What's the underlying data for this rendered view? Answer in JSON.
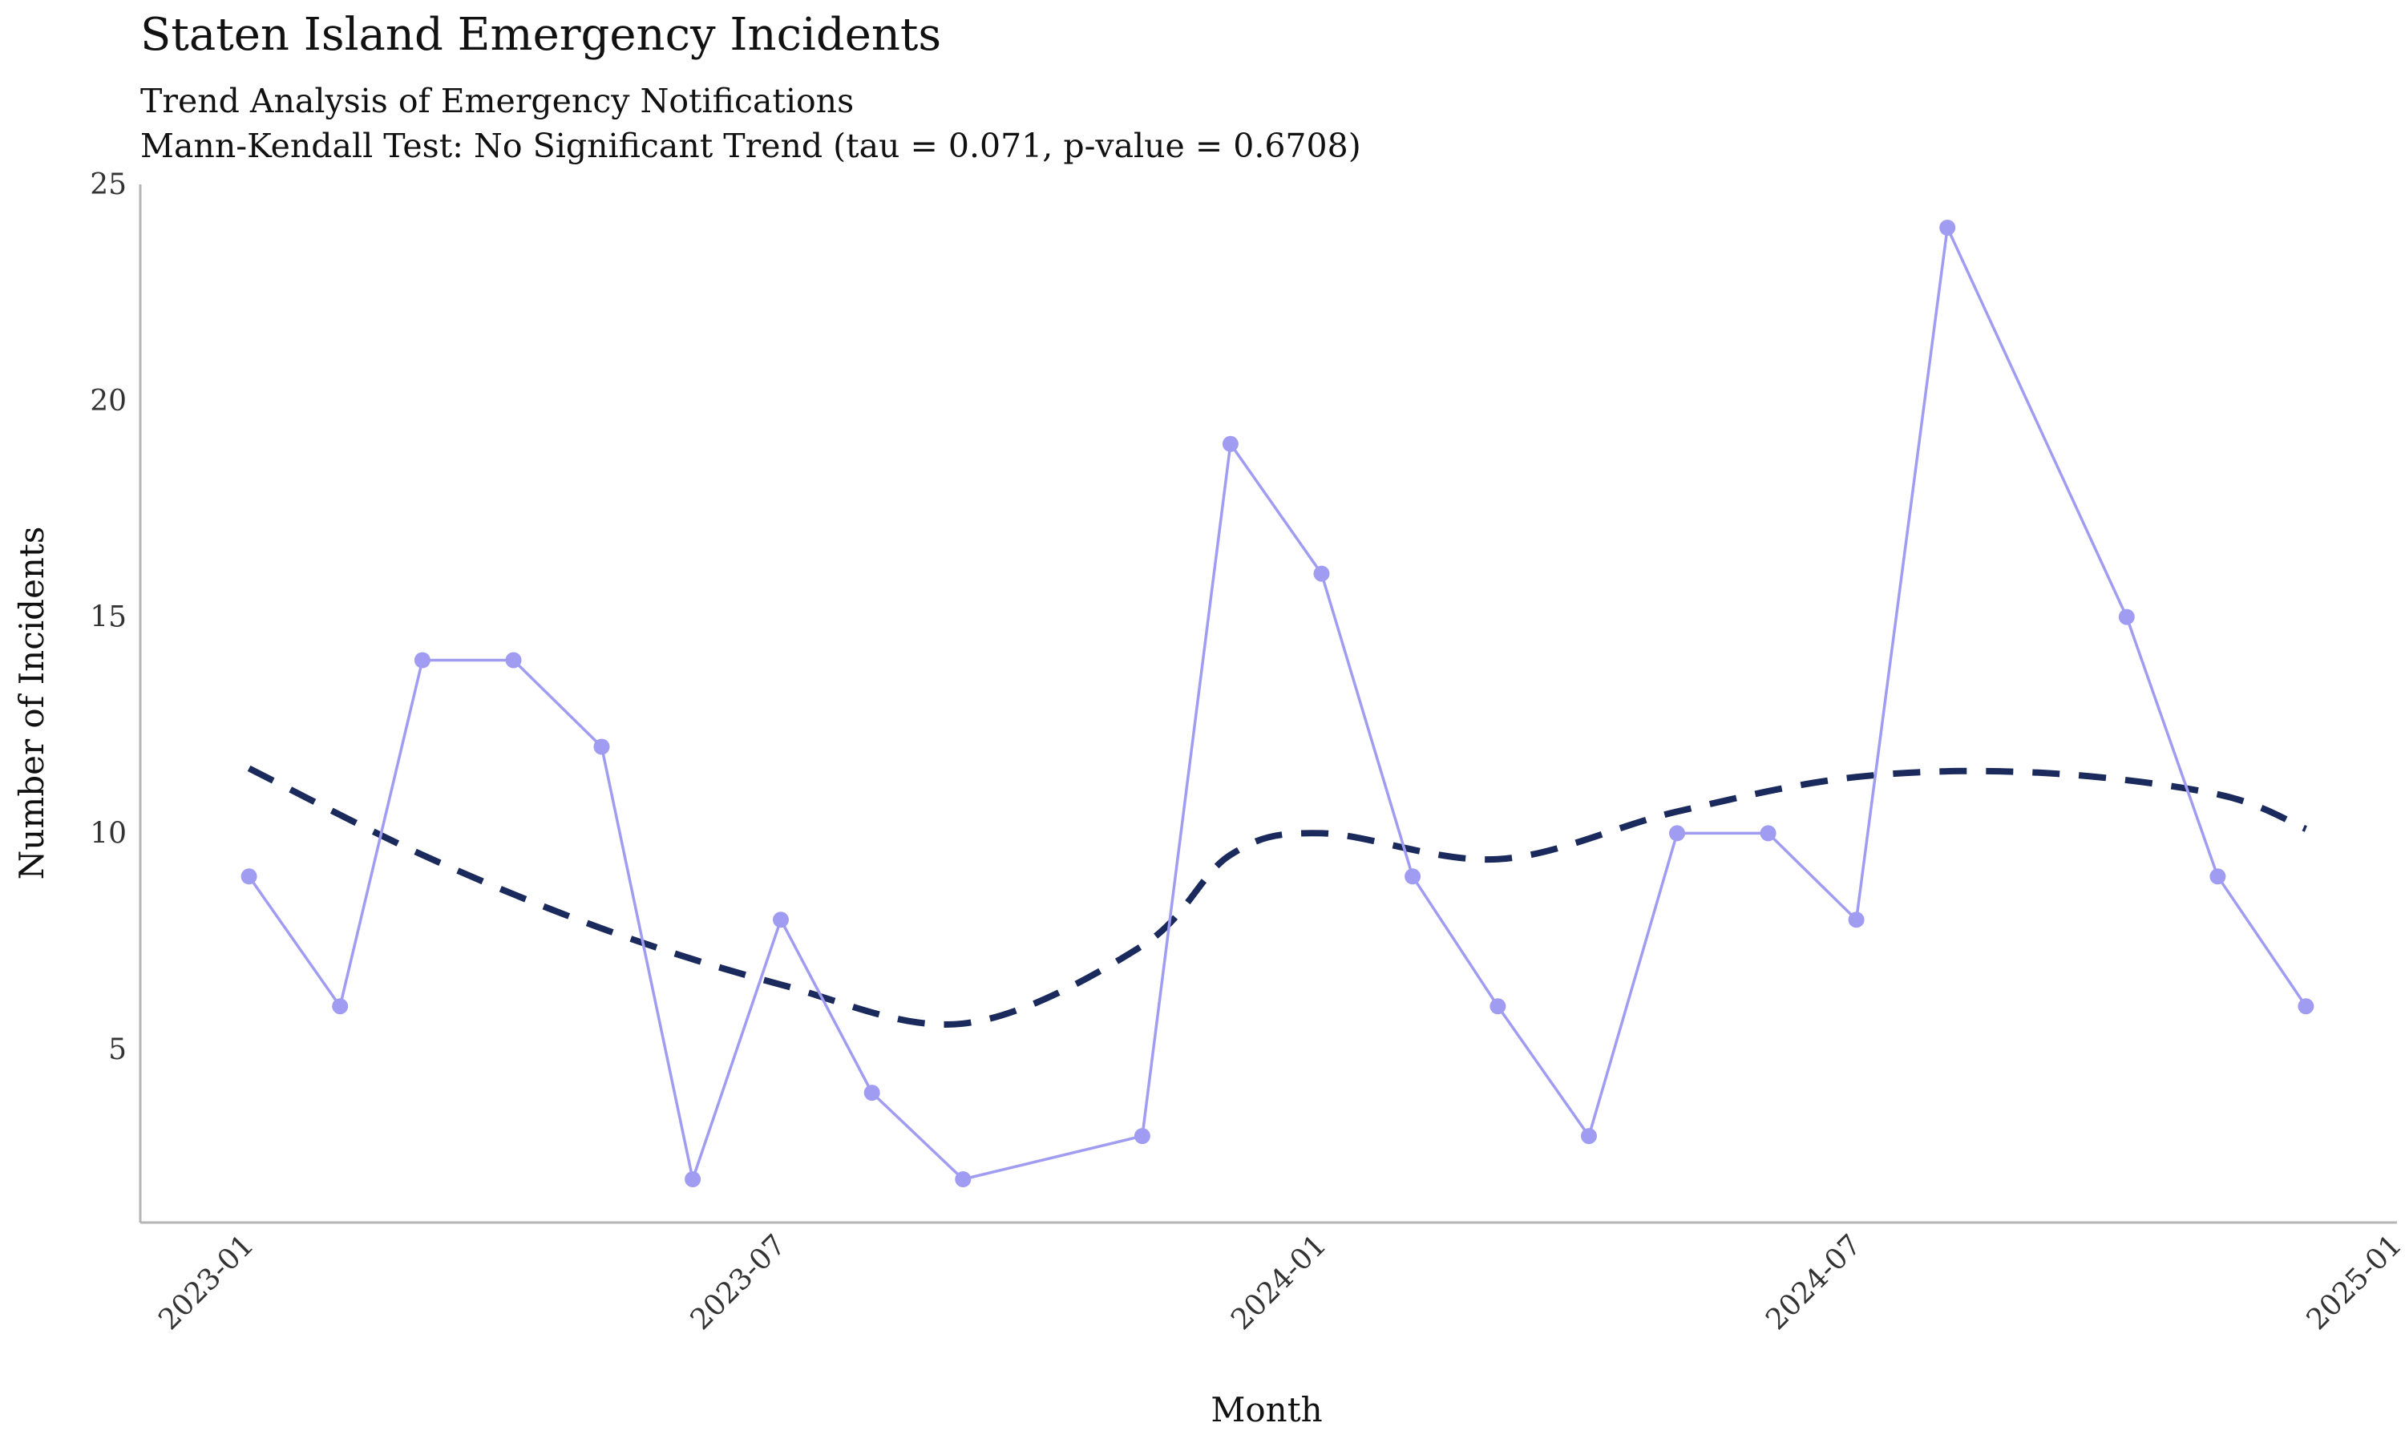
{
  "chart_data": {
    "type": "line",
    "title": "Staten Island Emergency Incidents",
    "subtitle": "Trend Analysis of Emergency Notifications",
    "caption": "Mann-Kendall Test: No Significant Trend (tau = 0.071, p-value = 0.6708)",
    "xlabel": "Month",
    "ylabel": "Number of Incidents",
    "x_ticks": [
      "2023-01",
      "2023-07",
      "2024-01",
      "2024-07",
      "2025-01"
    ],
    "y_ticks": [
      5,
      10,
      15,
      20,
      25
    ],
    "xlim": [
      "2022-11-25",
      "2025-01-01"
    ],
    "ylim": [
      1,
      25
    ],
    "grid": false,
    "legend": "none",
    "series": [
      {
        "type": "line+points",
        "color": "#a09cf2",
        "points": [
          {
            "x": "2023-01-01",
            "y": 9
          },
          {
            "x": "2023-02-01",
            "y": 6
          },
          {
            "x": "2023-03-01",
            "y": 14
          },
          {
            "x": "2023-04-01",
            "y": 14
          },
          {
            "x": "2023-05-01",
            "y": 12
          },
          {
            "x": "2023-06-01",
            "y": 2
          },
          {
            "x": "2023-07-01",
            "y": 8
          },
          {
            "x": "2023-08-01",
            "y": 4
          },
          {
            "x": "2023-09-01",
            "y": 2
          },
          {
            "x": "2023-11-01",
            "y": 3
          },
          {
            "x": "2023-12-01",
            "y": 19
          },
          {
            "x": "2024-01-01",
            "y": 16
          },
          {
            "x": "2024-02-01",
            "y": 9
          },
          {
            "x": "2024-03-01",
            "y": 6
          },
          {
            "x": "2024-04-01",
            "y": 3
          },
          {
            "x": "2024-05-01",
            "y": 10
          },
          {
            "x": "2024-06-01",
            "y": 10
          },
          {
            "x": "2024-07-01",
            "y": 8
          },
          {
            "x": "2024-08-01",
            "y": 24
          },
          {
            "x": "2024-10-01",
            "y": 15
          },
          {
            "x": "2024-11-01",
            "y": 9
          },
          {
            "x": "2024-12-01",
            "y": 6
          }
        ]
      },
      {
        "type": "smooth-trend",
        "style": "dashed",
        "color": "#1b2a5c",
        "points": [
          {
            "x": "2023-01-01",
            "y": 11.5
          },
          {
            "x": "2023-03-01",
            "y": 9.5
          },
          {
            "x": "2023-05-01",
            "y": 7.8
          },
          {
            "x": "2023-07-01",
            "y": 6.5
          },
          {
            "x": "2023-09-01",
            "y": 5.6
          },
          {
            "x": "2023-11-01",
            "y": 7.4
          },
          {
            "x": "2023-12-01",
            "y": 9.5
          },
          {
            "x": "2024-01-01",
            "y": 10.0
          },
          {
            "x": "2024-03-01",
            "y": 9.4
          },
          {
            "x": "2024-05-01",
            "y": 10.5
          },
          {
            "x": "2024-07-01",
            "y": 11.3
          },
          {
            "x": "2024-09-01",
            "y": 11.4
          },
          {
            "x": "2024-11-01",
            "y": 10.9
          },
          {
            "x": "2024-12-01",
            "y": 10.1
          }
        ]
      }
    ]
  }
}
